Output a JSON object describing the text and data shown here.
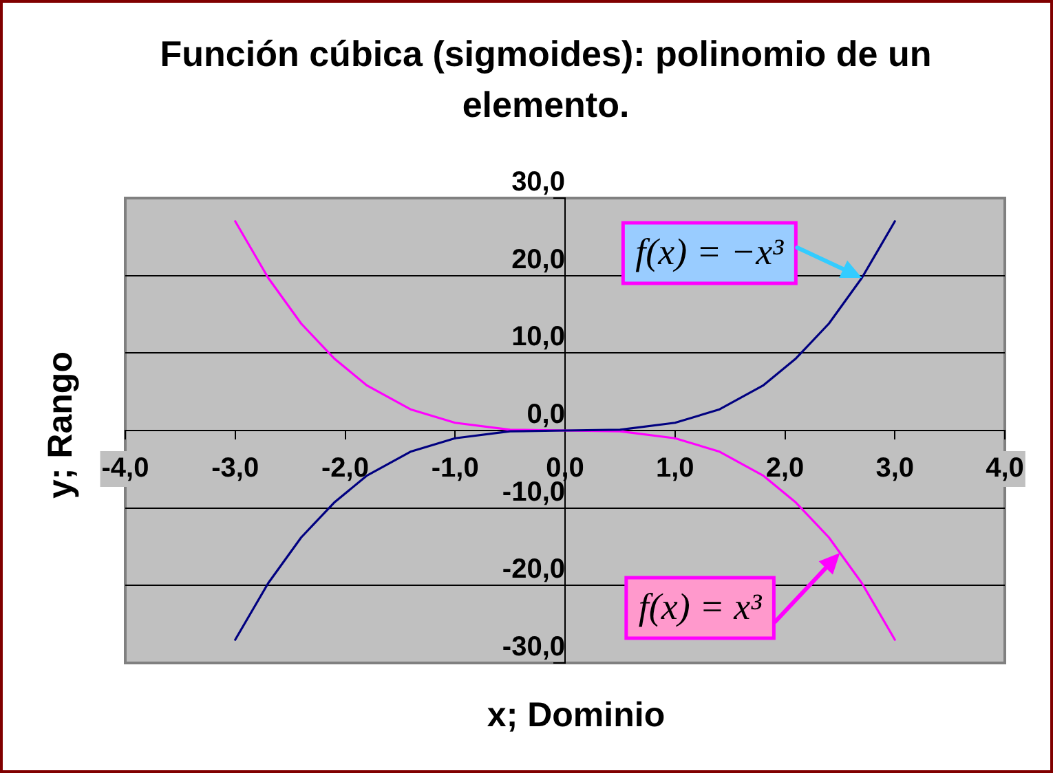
{
  "chart_data": {
    "type": "line",
    "title": "Función cúbica (sigmoides): polinomio de un elemento.",
    "xlabel": "x; Dominio",
    "ylabel": "y; Rango",
    "x": [
      -3,
      -2.7,
      -2.4,
      -2.1,
      -1.8,
      -1.4,
      -1,
      -0.5,
      0,
      0.5,
      1,
      1.4,
      1.8,
      2.1,
      2.4,
      2.7,
      3
    ],
    "series": [
      {
        "color": "#000080",
        "values": [
          -27,
          -19.7,
          -13.8,
          -9.3,
          -5.8,
          -2.7,
          -1,
          -0.1,
          0,
          0.1,
          1,
          2.7,
          5.8,
          9.3,
          13.8,
          19.7,
          27
        ]
      },
      {
        "color": "#ff00ff",
        "values": [
          27,
          19.7,
          13.8,
          9.3,
          5.8,
          2.7,
          1,
          0.1,
          0,
          -0.1,
          -1,
          -2.7,
          -5.8,
          -9.3,
          -13.8,
          -19.7,
          -27
        ]
      }
    ],
    "xlim": [
      -4,
      4
    ],
    "xticks": [
      {
        "value": -4,
        "label": "-4,0"
      },
      {
        "value": -3,
        "label": "-3,0"
      },
      {
        "value": -2,
        "label": "-2,0"
      },
      {
        "value": -1,
        "label": "-1,0"
      },
      {
        "value": 0,
        "label": "0,0"
      },
      {
        "value": 1,
        "label": "1,0"
      },
      {
        "value": 2,
        "label": "2,0"
      },
      {
        "value": 3,
        "label": "3,0"
      },
      {
        "value": 4,
        "label": "4,0"
      }
    ],
    "ylim": [
      -30,
      30
    ],
    "yticks": [
      {
        "value": -30,
        "label": "-30,0"
      },
      {
        "value": -20,
        "label": "-20,0"
      },
      {
        "value": -10,
        "label": "-10,0"
      },
      {
        "value": 0,
        "label": "0,0"
      },
      {
        "value": 10,
        "label": "10,0"
      },
      {
        "value": 20,
        "label": "20,0"
      },
      {
        "value": 30,
        "label": "30,0"
      }
    ],
    "grid": "y",
    "annotations": [
      {
        "text": "f(x) = −x³",
        "x": 2.7,
        "y": 19.7
      },
      {
        "text": "f(x) = x³",
        "x": 2.5,
        "y": -15.8
      }
    ]
  }
}
